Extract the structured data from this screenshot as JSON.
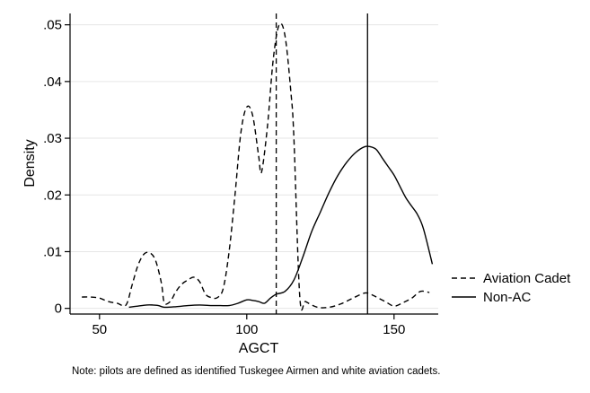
{
  "chart_data": {
    "type": "line",
    "title": "",
    "xlabel": "AGCT",
    "ylabel": "Density",
    "xlim": [
      40,
      165
    ],
    "ylim": [
      -0.001,
      0.052
    ],
    "xticks": [
      50,
      100,
      150
    ],
    "xtick_labels": [
      "50",
      "100",
      "150"
    ],
    "yticks": [
      0,
      0.01,
      0.02,
      0.03,
      0.04,
      0.05
    ],
    "ytick_labels": [
      "0",
      ".01",
      ".02",
      ".03",
      ".04",
      ".05"
    ],
    "grid": "horizontal",
    "legend_position": "right",
    "series": [
      {
        "name": "Aviation Cadet",
        "style": "dashed",
        "color": "#000000",
        "x": [
          44,
          47,
          50,
          53,
          56,
          59,
          61,
          63,
          65,
          67,
          69,
          71,
          72,
          74,
          76,
          78,
          80,
          82,
          84,
          86,
          88,
          90,
          92,
          94,
          96,
          98,
          100,
          102,
          104,
          105,
          107,
          109,
          111,
          113,
          115,
          116,
          118,
          120,
          124,
          128,
          132,
          136,
          140,
          142,
          144,
          147,
          150,
          153,
          156,
          159,
          162
        ],
        "y": [
          0.002,
          0.002,
          0.0018,
          0.0012,
          0.0009,
          0.0006,
          0.004,
          0.0075,
          0.0095,
          0.0098,
          0.0085,
          0.0045,
          0.001,
          0.0012,
          0.003,
          0.0043,
          0.005,
          0.0055,
          0.0047,
          0.0025,
          0.0019,
          0.0019,
          0.0035,
          0.01,
          0.02,
          0.031,
          0.0355,
          0.034,
          0.027,
          0.024,
          0.032,
          0.044,
          0.05,
          0.048,
          0.038,
          0.03,
          0.002,
          0.0012,
          0.0002,
          0.0002,
          0.0008,
          0.0018,
          0.0027,
          0.0025,
          0.002,
          0.0012,
          0.0004,
          0.001,
          0.0018,
          0.003,
          0.0028
        ]
      },
      {
        "name": "Non-AC",
        "style": "solid",
        "color": "#000000",
        "x": [
          60,
          63,
          66,
          68,
          70,
          72,
          76,
          80,
          84,
          88,
          90,
          94,
          97,
          100,
          102,
          104,
          106,
          108,
          110,
          113,
          116,
          119,
          122,
          125,
          128,
          131,
          134,
          137,
          140,
          142,
          144,
          146,
          148,
          150,
          152,
          154,
          156,
          158,
          160,
          163
        ],
        "y": [
          0.0002,
          0.0004,
          0.0006,
          0.0006,
          0.0005,
          0.0002,
          0.0003,
          0.0005,
          0.0006,
          0.0005,
          0.0005,
          0.0005,
          0.0009,
          0.0015,
          0.0014,
          0.0012,
          0.0009,
          0.0018,
          0.0025,
          0.003,
          0.005,
          0.009,
          0.0135,
          0.017,
          0.0205,
          0.0235,
          0.0258,
          0.0275,
          0.0285,
          0.0285,
          0.028,
          0.0265,
          0.025,
          0.0235,
          0.0215,
          0.0195,
          0.018,
          0.0165,
          0.014,
          0.0078
        ]
      }
    ],
    "vertical_lines": [
      {
        "x": 110,
        "style": "dashed",
        "series": "Aviation Cadet"
      },
      {
        "x": 141,
        "style": "solid",
        "series": "Non-AC"
      }
    ],
    "note": "Note: pilots are defined as identified Tuskegee Airmen and white aviation cadets."
  }
}
